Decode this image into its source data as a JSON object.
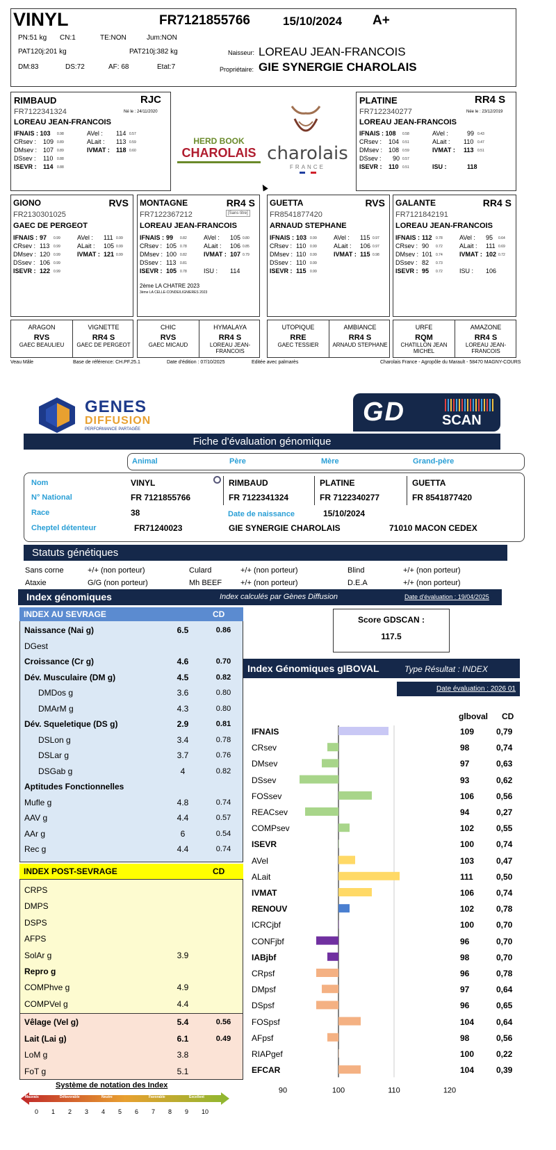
{
  "animal": {
    "name": "VINYL",
    "id": "FR7121855766",
    "date": "15/10/2024",
    "grade": "A+",
    "pn": "PN:51 kg",
    "cn": "CN:1",
    "te": "TE:NON",
    "jum": "Jum:NON",
    "pat120": "PAT120j:201 kg",
    "pat210": "PAT210j:382 kg",
    "dm": "DM:83",
    "ds": "DS:72",
    "af": "AF: 68",
    "etat": "Etat:7",
    "naisseur_label": "Naisseur:",
    "naisseur": "LOREAU JEAN-FRANCOIS",
    "proprietaire_label": "Propriétaire:",
    "proprietaire": "GIE SYNERGIE CHAROLAIS"
  },
  "pere": {
    "name": "RIMBAUD",
    "code": "RJC",
    "id": "FR7122341324",
    "born": "Né le : 24/11/2020",
    "breeder": "LOREAU JEAN-FRANCOIS",
    "l1": [
      "IFNAIS : 103",
      "0.98",
      "AVel :",
      "114",
      "0.57"
    ],
    "l2": [
      "CRsev :",
      "109",
      "0.89",
      "ALait :",
      "113",
      "0.59"
    ],
    "l3": [
      "DMsev :",
      "107",
      "0.89",
      "IVMAT :",
      "118",
      "0.60"
    ],
    "l4": [
      "DSsev :",
      "110",
      "0.88"
    ],
    "l5": [
      "ISEVR :",
      "114",
      "0.88"
    ]
  },
  "mere": {
    "name": "PLATINE",
    "code": "RR4 S",
    "id": "FR7122340277",
    "born": "Née le : 23/12/2019",
    "breeder": "LOREAU JEAN-FRANCOIS",
    "l1": [
      "IFNAIS : 108",
      "0.58",
      "AVel :",
      "99",
      "0.43"
    ],
    "l2": [
      "CRsev :",
      "104",
      "0.51",
      "ALait :",
      "110",
      "0.47"
    ],
    "l3": [
      "DMsev :",
      "108",
      "0.59",
      "IVMAT :",
      "113",
      "0.51"
    ],
    "l4": [
      "DSsev :",
      "90",
      "0.57"
    ],
    "l5": [
      "ISEVR :",
      "110",
      "0.51",
      "ISU :",
      "118"
    ]
  },
  "logos": {
    "herdbook1": "HERD BOOK",
    "herdbook2": "CHAROLAIS",
    "charolais": "charolais",
    "france": "FRANCE"
  },
  "gp": [
    {
      "name": "GIONO",
      "code": "RVS",
      "id": "FR2130301025",
      "breeder": "GAEC DE PERGEOT",
      "l1": [
        "IFNAIS :",
        "97",
        "0.99",
        "AVel :",
        "111",
        "0.99"
      ],
      "l2": [
        "CRsev :",
        "113",
        "0.99",
        "ALait :",
        "105",
        "0.99"
      ],
      "l3": [
        "DMsev :",
        "120",
        "0.99",
        "IVMAT :",
        "121",
        "0.99"
      ],
      "l4": [
        "DSsev :",
        "106",
        "0.99"
      ],
      "l5": [
        "ISEVR :",
        "122",
        "0.99"
      ]
    },
    {
      "name": "MONTAGNE",
      "code": "RR4 S",
      "tag": "[Sans titre]",
      "id": "FR7122367212",
      "breeder": "LOREAU JEAN-FRANCOIS",
      "l1": [
        "IFNAIS :",
        "99",
        "0.82",
        "AVel :",
        "105",
        "0.80"
      ],
      "l2": [
        "CRsev :",
        "105",
        "0.78",
        "ALait :",
        "106",
        "0.85"
      ],
      "l3": [
        "DMsev :",
        "100",
        "0.82",
        "IVMAT :",
        "107",
        "0.79"
      ],
      "l4": [
        "DSsev :",
        "113",
        "0.81"
      ],
      "l5": [
        "ISEVR :",
        "105",
        "0.78",
        "ISU :",
        "114"
      ],
      "extra1": "2ème  LA CHATRE 2023",
      "extra2": "3ème  LA CELLE-CONDE/LIGNIERES 2023"
    },
    {
      "name": "GUETTA",
      "code": "RVS",
      "id": "FR8541877420",
      "breeder": "ARNAUD STEPHANE",
      "l1": [
        "IFNAIS :",
        "103",
        "0.99",
        "AVel :",
        "115",
        "0.97"
      ],
      "l2": [
        "CRsev :",
        "110",
        "0.99",
        "ALait :",
        "106",
        "0.97"
      ],
      "l3": [
        "DMsev :",
        "110",
        "0.99",
        "IVMAT :",
        "115",
        "0.98"
      ],
      "l4": [
        "DSsev :",
        "110",
        "0.99"
      ],
      "l5": [
        "ISEVR :",
        "115",
        "0.99"
      ]
    },
    {
      "name": "GALANTE",
      "code": "RR4 S",
      "id": "FR7121842191",
      "breeder": "LOREAU JEAN-FRANCOIS",
      "l1": [
        "IFNAIS :",
        "112",
        "0.78",
        "AVel :",
        "95",
        "0.64"
      ],
      "l2": [
        "CRsev :",
        "90",
        "0.72",
        "ALait :",
        "111",
        "0.69"
      ],
      "l3": [
        "DMsev :",
        "101",
        "0.74",
        "IVMAT :",
        "102",
        "0.72"
      ],
      "l4": [
        "DSsev :",
        "82",
        "0.73"
      ],
      "l5": [
        "ISEVR :",
        "95",
        "0.72",
        "ISU :",
        "106"
      ]
    }
  ],
  "ggp": [
    {
      "n": "ARAGON",
      "r": "RVS",
      "e": "GAEC BEAULIEU"
    },
    {
      "n": "VIGNETTE",
      "r": "RR4 S",
      "e": "GAEC DE PERGEOT"
    },
    {
      "n": "CHIC",
      "r": "RVS",
      "e": "GAEC MICAUD"
    },
    {
      "n": "HYMALAYA",
      "r": "RR4 S",
      "e": "LOREAU JEAN-FRANCOIS"
    },
    {
      "n": "UTOPIQUE",
      "r": "RRE",
      "e": "GAEC TESSIER"
    },
    {
      "n": "AMBIANCE",
      "r": "RR4 S",
      "e": "ARNAUD STEPHANE"
    },
    {
      "n": "URFE",
      "r": "RQM",
      "e": "CHATILLON JEAN MICHEL"
    },
    {
      "n": "AMAZONE",
      "r": "RR4 S",
      "e": "LOREAU JEAN-FRANCOIS"
    }
  ],
  "footer": {
    "sex": "Veau Mâle",
    "base": "Base de référence: CH.PF.25.1",
    "edition": "Date d'édition : 07/10/2025",
    "palm": "Editée avec palmarès",
    "addr": "Charolais France - Agropôle du Marault - 58470 MAGNY-COURS"
  },
  "gd": {
    "logo1": "GENES",
    "logo2": "DIFFUSION",
    "logo3": "PERFORMANCE PARTAGÉE",
    "scan_gd": "GD",
    "scan_word": "SCAN",
    "title": "Fiche d'évaluation génomique",
    "tabs": [
      "Animal",
      "Père",
      "Mère",
      "Grand-père"
    ],
    "labels": {
      "nom": "Nom",
      "nat": "N° National",
      "race": "Race",
      "naiss": "Date de naissance",
      "cheptel": "Cheptel détenteur"
    },
    "nom": "VINYL",
    "nat": "FR 7121855766",
    "race": "38",
    "pere_nom": "RIMBAUD",
    "pere_nat": "FR 7122341324",
    "mere_nom": "PLATINE",
    "mere_nat": "FR 7122340277",
    "gp_nom": "GUETTA",
    "gp_nat": "FR 8541877420",
    "naiss": "15/10/2024",
    "cheptel": "FR71240023",
    "cheptel_nom": "GIE SYNERGIE CHAROLAIS",
    "cheptel_ville": "71010 MACON CEDEX",
    "statuts_title": "Statuts génétiques",
    "statuts": [
      [
        "Sans corne",
        "+/+ (non porteur)",
        "Culard",
        "+/+ (non porteur)",
        "Blind",
        "+/+ (non porteur)"
      ],
      [
        "Ataxie",
        "G/G (non porteur)",
        "Mh BEEF",
        "+/+ (non porteur)",
        "D.E.A",
        "+/+ (non porteur)"
      ]
    ],
    "index_title": "Index génomiques",
    "index_sub": "Index calculés par Gènes Diffusion",
    "index_date": "Date d'évaluation : 19/04/2025",
    "sevrage_title": "INDEX AU SEVRAGE",
    "cd": "CD",
    "sevrage": [
      {
        "l": "Naissance (Nai g)",
        "v": "6.5",
        "c": "0.86",
        "b": true
      },
      {
        "l": "DGest",
        "v": "",
        "c": ""
      },
      {
        "l": "Croissance (Cr g)",
        "v": "4.6",
        "c": "0.70",
        "b": true
      },
      {
        "l": "Dév. Musculaire (DM g)",
        "v": "4.5",
        "c": "0.82",
        "b": true
      },
      {
        "l": "DMDos g",
        "v": "3.6",
        "c": "0.80",
        "ind": 20
      },
      {
        "l": "DMArM g",
        "v": "4.3",
        "c": "0.80",
        "ind": 20
      },
      {
        "l": "Dév. Squeletique (DS g)",
        "v": "2.9",
        "c": "0.81",
        "b": true
      },
      {
        "l": "DSLon g",
        "v": "3.4",
        "c": "0.78",
        "ind": 20
      },
      {
        "l": "DSLar g",
        "v": "3.7",
        "c": "0.76",
        "ind": 20
      },
      {
        "l": "DSGab g",
        "v": "4",
        "c": "0.82",
        "ind": 20
      },
      {
        "l": "Aptitudes Fonctionnelles",
        "v": "",
        "c": "",
        "b": true
      },
      {
        "l": "Mufle g",
        "v": "4.8",
        "c": "0.74"
      },
      {
        "l": "AAV g",
        "v": "4.4",
        "c": "0.57"
      },
      {
        "l": "AAr g",
        "v": "6",
        "c": "0.54"
      },
      {
        "l": "Rec g",
        "v": "4.4",
        "c": "0.74"
      }
    ],
    "post_title": "INDEX POST-SEVRAGE",
    "post": [
      {
        "l": "CRPS",
        "v": ""
      },
      {
        "l": "DMPS",
        "v": ""
      },
      {
        "l": "DSPS",
        "v": ""
      },
      {
        "l": "AFPS",
        "v": ""
      },
      {
        "l": "SolAr g",
        "v": "3.9"
      },
      {
        "l": "Repro g",
        "v": "",
        "b": true
      },
      {
        "l": "COMPhve g",
        "v": "4.9"
      },
      {
        "l": "COMPVel g",
        "v": "4.4"
      }
    ],
    "velage": [
      {
        "l": "Vêlage (Vel g)",
        "v": "5.4",
        "c": "0.56",
        "b": true
      },
      {
        "l": "Lait (Lai g)",
        "v": "6.1",
        "c": "0.49",
        "b": true
      },
      {
        "l": "LoM g",
        "v": "3.8",
        "c": ""
      },
      {
        "l": "FoT g",
        "v": "5.1",
        "c": ""
      }
    ],
    "scale_title": "Système de notation des Index",
    "scale_words": [
      "Mauvais",
      "Défavorable",
      "Neutre",
      "Favorable",
      "Excellent"
    ],
    "scale_nums": [
      "0",
      "1",
      "2",
      "3",
      "4",
      "5",
      "6",
      "7",
      "8",
      "9",
      "10"
    ],
    "score_label": "Score GDSCAN :",
    "score": "117.5",
    "giboval_title": "Index Génomiques gIBOVAL",
    "giboval_type": "Type Résultat : INDEX",
    "giboval_date": "Date évaluation : 2026 01",
    "col_g": "glboval",
    "col_cd": "CD"
  },
  "chart_data": {
    "type": "bar",
    "orientation": "horizontal",
    "baseline": 100,
    "xlim": [
      90,
      120
    ],
    "xticks": [
      "90",
      "100",
      "110",
      "120"
    ],
    "categories": [
      "IFNAIS",
      "CRsev",
      "DMsev",
      "DSsev",
      "FOSsev",
      "REACsev",
      "COMPsev",
      "ISEVR",
      "AVel",
      "ALait",
      "IVMAT",
      "RENOUV",
      "ICRCjbf",
      "CONFjbf",
      "IABjbf",
      "CRpsf",
      "DMpsf",
      "DSpsf",
      "FOSpsf",
      "AFpsf",
      "RIAPgef",
      "EFCAR"
    ],
    "bold": [
      true,
      false,
      false,
      false,
      false,
      false,
      false,
      true,
      false,
      false,
      true,
      true,
      false,
      false,
      true,
      false,
      false,
      false,
      false,
      false,
      false,
      true
    ],
    "values": [
      109,
      98,
      97,
      93,
      106,
      94,
      102,
      100,
      103,
      111,
      106,
      102,
      100,
      96,
      98,
      96,
      97,
      96,
      104,
      98,
      100,
      104
    ],
    "cd": [
      "0,79",
      "0,74",
      "0,63",
      "0,62",
      "0,56",
      "0,27",
      "0,55",
      "0,74",
      "0,47",
      "0,50",
      "0,74",
      "0,78",
      "0,70",
      "0,70",
      "0,70",
      "0,78",
      "0,64",
      "0,65",
      "0,64",
      "0,56",
      "0,22",
      "0,39"
    ],
    "colors": [
      "#c9c8f5",
      "#a8d58a",
      "#a8d58a",
      "#a8d58a",
      "#a8d58a",
      "#a8d58a",
      "#a8d58a",
      "#a8d58a",
      "#ffd966",
      "#ffd966",
      "#ffd966",
      "#4a7fd0",
      "#7030a0",
      "#7030a0",
      "#7030a0",
      "#f4b183",
      "#f4b183",
      "#f4b183",
      "#f4b183",
      "#f4b183",
      "#f4b183",
      "#f4b183"
    ]
  }
}
